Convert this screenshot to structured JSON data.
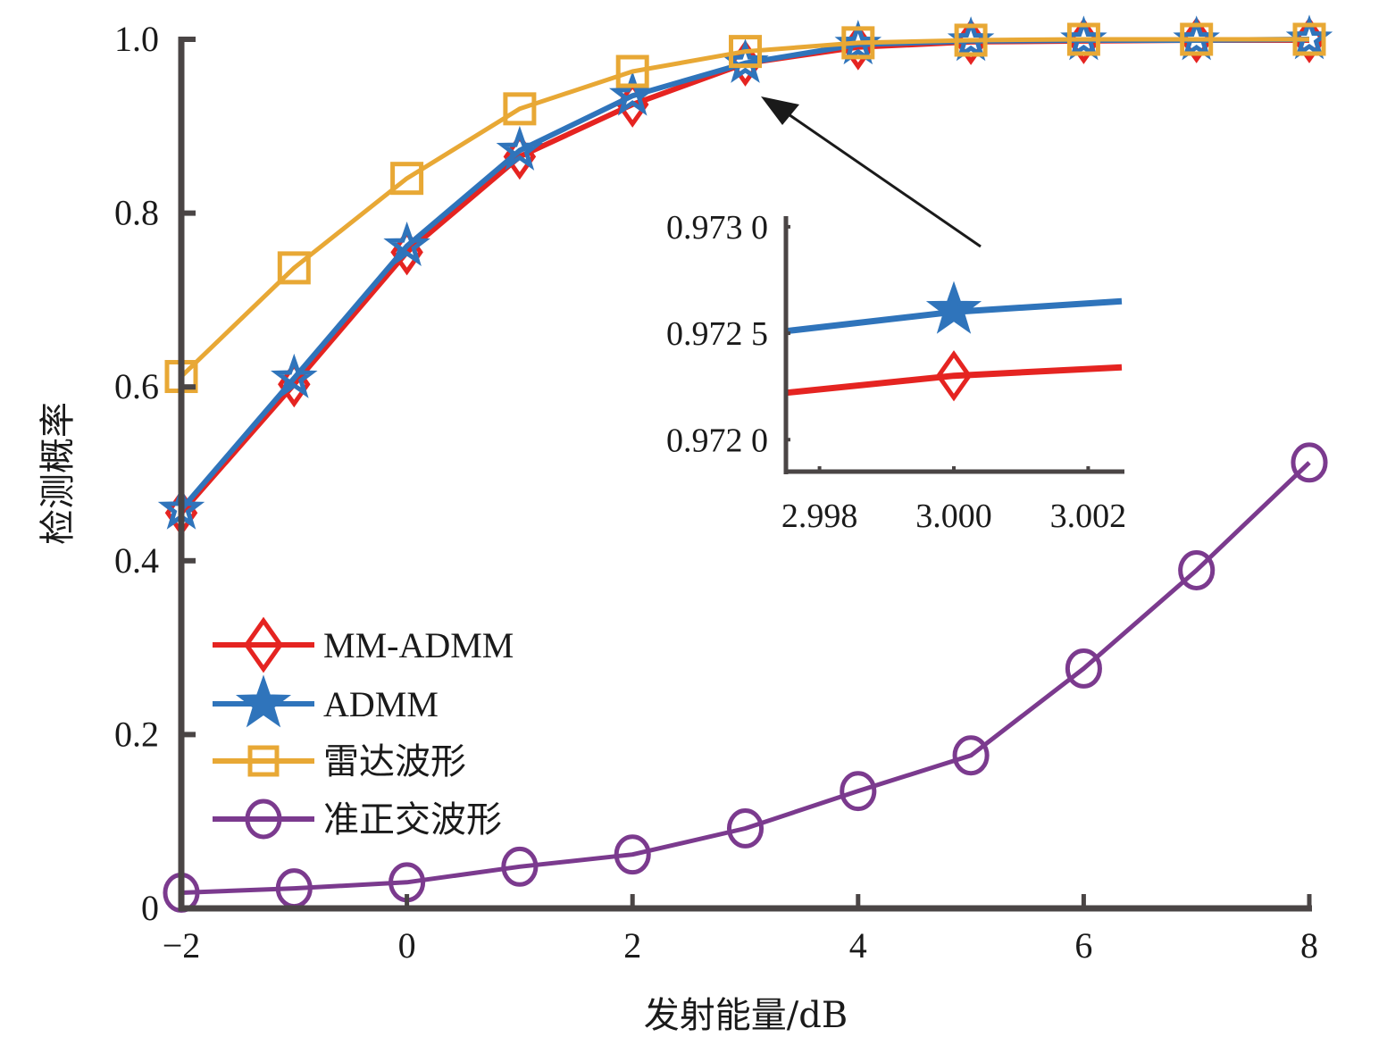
{
  "chart_data": {
    "type": "line",
    "title": "",
    "xlabel": "发射能量/dB",
    "ylabel": "检测概率",
    "xlim": [
      -2,
      8
    ],
    "ylim": [
      0,
      1.0
    ],
    "x": [
      -2,
      -1,
      0,
      1,
      2,
      3,
      4,
      5,
      6,
      7,
      8
    ],
    "x_ticks": [
      -2,
      0,
      2,
      4,
      6,
      8
    ],
    "x_tick_labels": [
      "−2",
      "0",
      "2",
      "4",
      "6",
      "8"
    ],
    "y_ticks": [
      0,
      0.2,
      0.4,
      0.6,
      0.8,
      1.0
    ],
    "y_tick_labels": [
      "0",
      "0.2",
      "0.4",
      "0.6",
      "0.8",
      "1.0"
    ],
    "grid": false,
    "legend_position": "lower-left",
    "series": [
      {
        "name": "MM-ADMM",
        "color": "#e52421",
        "marker": "diamond",
        "values": [
          0.455,
          0.603,
          0.755,
          0.865,
          0.925,
          0.9723,
          0.991,
          0.997,
          0.998,
          0.999,
          0.999
        ]
      },
      {
        "name": "ADMM",
        "color": "#2f74bb",
        "marker": "star",
        "values": [
          0.459,
          0.61,
          0.762,
          0.872,
          0.935,
          0.9726,
          0.994,
          0.998,
          0.999,
          0.999,
          1.0
        ]
      },
      {
        "name": "雷达波形",
        "color": "#e8a835",
        "marker": "square",
        "values": [
          0.612,
          0.737,
          0.84,
          0.92,
          0.963,
          0.986,
          0.996,
          0.999,
          1.0,
          1.0,
          1.0
        ]
      },
      {
        "name": "准正交波形",
        "color": "#7b3a8e",
        "marker": "circle",
        "values": [
          0.018,
          0.023,
          0.03,
          0.048,
          0.062,
          0.092,
          0.135,
          0.176,
          0.276,
          0.389,
          0.513
        ]
      }
    ],
    "inset": {
      "xlim": [
        2.9975,
        3.0025
      ],
      "ylim": [
        0.97185,
        0.97305
      ],
      "x_ticks": [
        2.998,
        3.0,
        3.002
      ],
      "x_tick_labels": [
        "2.998",
        "3.000",
        "3.002"
      ],
      "y_ticks": [
        0.972,
        0.9725,
        0.973
      ],
      "y_tick_labels": [
        "0.972 0",
        "0.972 5",
        "0.973 0"
      ],
      "series": [
        {
          "name": "ADMM",
          "color": "#2f74bb",
          "marker": "star",
          "points": [
            [
              2.9975,
              0.97251
            ],
            [
              3.0,
              0.9726
            ],
            [
              3.0025,
              0.97265
            ]
          ]
        },
        {
          "name": "MM-ADMM",
          "color": "#e52421",
          "marker": "diamond",
          "points": [
            [
              2.9975,
              0.97222
            ],
            [
              3.0,
              0.9723
            ],
            [
              3.0025,
              0.97234
            ]
          ]
        }
      ],
      "annotation": "arrow pointing to x=3 on main chart"
    }
  }
}
